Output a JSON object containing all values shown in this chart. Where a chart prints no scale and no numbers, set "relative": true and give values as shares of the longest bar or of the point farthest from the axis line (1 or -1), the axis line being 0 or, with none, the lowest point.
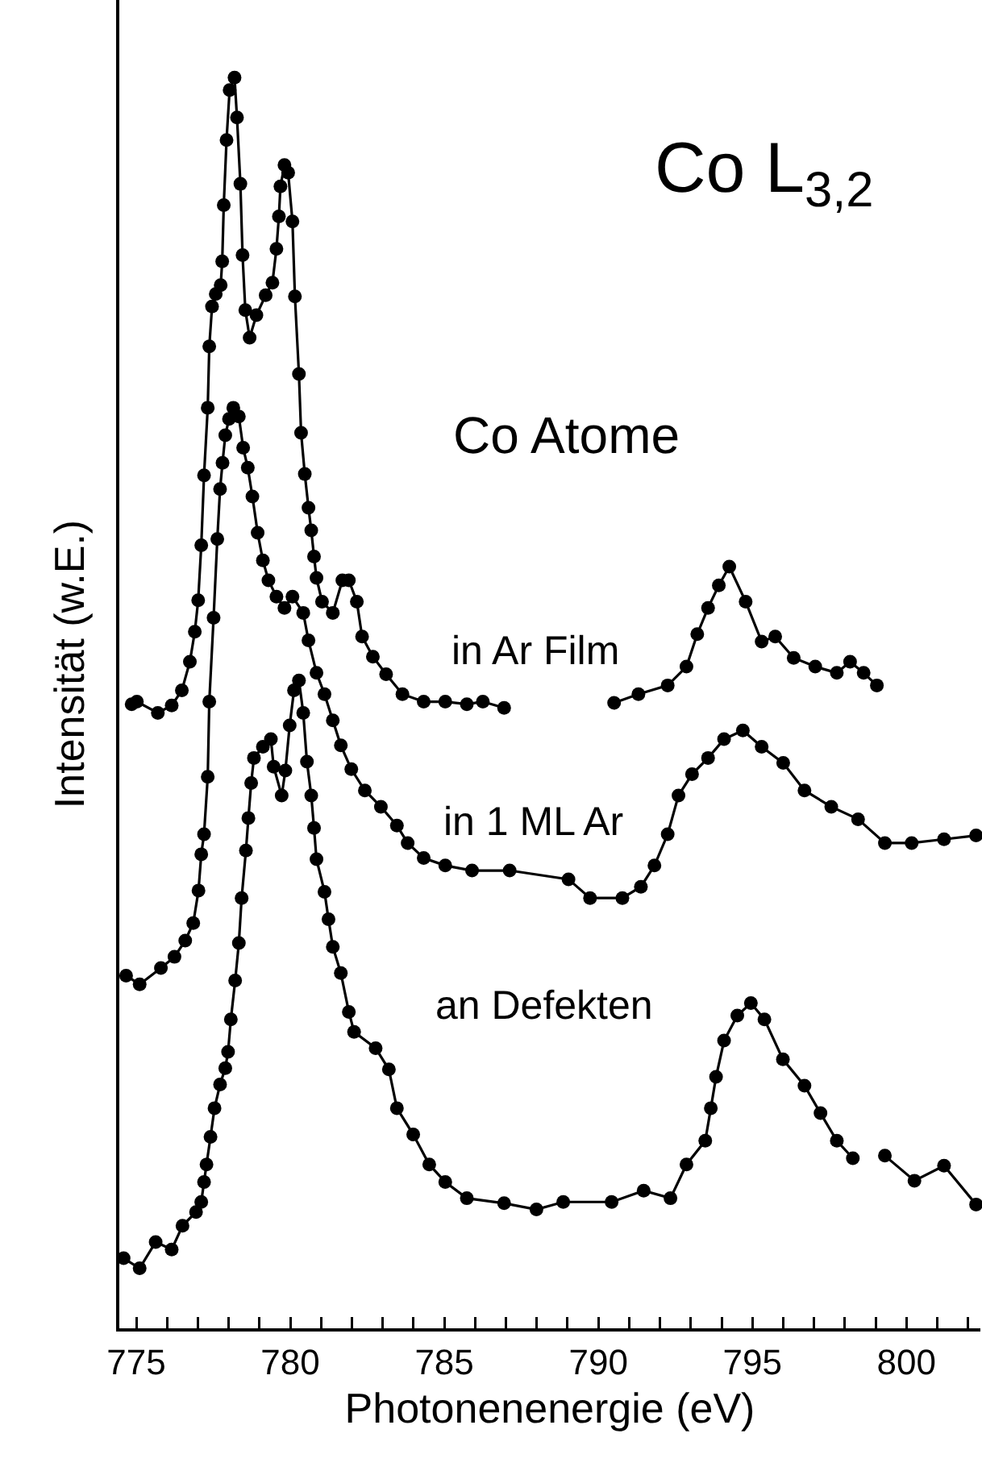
{
  "chart_data": {
    "type": "line",
    "xlabel": "Photonenenergie (eV)",
    "ylabel": "Intensität (w.E.)",
    "relative": true,
    "marker": "circle",
    "line_style": "solid",
    "legend": false,
    "grid": false,
    "tick_labels": "x",
    "annotations": [
      "Co L$_{3,2}$",
      "Co Atome"
    ],
    "xlim": [
      774.45,
      802.4
    ],
    "xticks": [
      775,
      {
        "value": 776,
        "label": null
      },
      {
        "value": 777,
        "label": null
      },
      {
        "value": 778,
        "label": null
      },
      {
        "value": 779,
        "label": null
      },
      780,
      {
        "value": 781,
        "label": null
      },
      {
        "value": 782,
        "label": null
      },
      {
        "value": 783,
        "label": null
      },
      {
        "value": 784,
        "label": null
      },
      785,
      {
        "value": 786,
        "label": null
      },
      {
        "value": 787,
        "label": null
      },
      {
        "value": 788,
        "label": null
      },
      {
        "value": 789,
        "label": null
      },
      790,
      {
        "value": 791,
        "label": null
      },
      {
        "value": 792,
        "label": null
      },
      {
        "value": 793,
        "label": null
      },
      {
        "value": 794,
        "label": null
      },
      795,
      {
        "value": 796,
        "label": null
      },
      {
        "value": 797,
        "label": null
      },
      {
        "value": 798,
        "label": null
      },
      {
        "value": 799,
        "label": null
      },
      800,
      {
        "value": 801,
        "label": null
      },
      {
        "value": 802,
        "label": null
      }
    ],
    "series": [
      {
        "name": "in Ar Film",
        "color": "#000000",
        "x": [
          774.85,
          775.02,
          775.7,
          776.15,
          776.48,
          776.74,
          776.9,
          777.01,
          777.11,
          777.2,
          777.32,
          777.37,
          777.46,
          777.58,
          777.74,
          777.79,
          777.84,
          777.93,
          778.03,
          778.19,
          778.27,
          778.38,
          778.45,
          778.54,
          778.68,
          778.9,
          779.2,
          779.42,
          779.55,
          779.63,
          779.68,
          779.81,
          779.93,
          780.07,
          780.15,
          780.28,
          780.35,
          780.47,
          780.59,
          780.68,
          780.77,
          780.85,
          781.03,
          781.38,
          781.69,
          781.9,
          782.16,
          782.33,
          782.68,
          783.11,
          783.64,
          784.33,
          785.03,
          785.73,
          786.25,
          786.94,
          788.7,
          790.51,
          791.3,
          792.25,
          792.86,
          793.21,
          793.56,
          793.91,
          794.25,
          794.78,
          795.3,
          795.74,
          796.34,
          797.04,
          797.74,
          798.17,
          798.61,
          799.04
        ],
        "values": [
          0.499,
          0.501,
          0.492,
          0.498,
          0.51,
          0.533,
          0.557,
          0.582,
          0.626,
          0.682,
          0.736,
          0.785,
          0.817,
          0.827,
          0.834,
          0.853,
          0.898,
          0.95,
          0.99,
          1,
          0.968,
          0.915,
          0.858,
          0.814,
          0.792,
          0.81,
          0.826,
          0.836,
          0.863,
          0.889,
          0.913,
          0.93,
          0.924,
          0.885,
          0.825,
          0.763,
          0.716,
          0.683,
          0.656,
          0.638,
          0.617,
          0.6,
          0.581,
          0.572,
          0.598,
          0.598,
          0.581,
          0.553,
          0.537,
          0.523,
          0.507,
          0.501,
          0.501,
          0.499,
          0.501,
          0.496,
          null,
          0.5,
          0.507,
          0.514,
          0.529,
          0.555,
          0.576,
          0.594,
          0.609,
          0.581,
          0.549,
          0.553,
          0.536,
          0.529,
          0.524,
          0.533,
          0.524,
          0.514
        ]
      },
      {
        "name": "in 1 ML Ar",
        "color": "#000000",
        "x": [
          774.67,
          775.11,
          775.8,
          776.24,
          776.59,
          776.85,
          777.02,
          777.11,
          777.2,
          777.32,
          777.37,
          777.51,
          777.63,
          777.72,
          777.8,
          777.89,
          778.01,
          778.15,
          778.33,
          778.47,
          778.62,
          778.77,
          778.94,
          779.11,
          779.29,
          779.55,
          779.81,
          780.07,
          780.42,
          780.59,
          780.85,
          781.11,
          781.38,
          781.64,
          781.98,
          782.42,
          782.94,
          783.46,
          783.81,
          784.33,
          785.03,
          785.9,
          787.12,
          789.03,
          789.73,
          790.78,
          791.38,
          791.82,
          792.25,
          792.6,
          793.04,
          793.56,
          794.08,
          794.69,
          795.3,
          796.0,
          796.69,
          797.56,
          798.43,
          799.3,
          800.17,
          801.22,
          802.26
        ],
        "values": [
          0.282,
          0.275,
          0.288,
          0.297,
          0.31,
          0.324,
          0.35,
          0.379,
          0.395,
          0.441,
          0.501,
          0.568,
          0.631,
          0.671,
          0.692,
          0.714,
          0.727,
          0.736,
          0.729,
          0.704,
          0.688,
          0.665,
          0.636,
          0.614,
          0.598,
          0.585,
          0.576,
          0.585,
          0.572,
          0.55,
          0.524,
          0.507,
          0.486,
          0.466,
          0.447,
          0.43,
          0.417,
          0.402,
          0.388,
          0.376,
          0.37,
          0.366,
          0.366,
          0.359,
          0.344,
          0.344,
          0.353,
          0.37,
          0.395,
          0.426,
          0.443,
          0.456,
          0.471,
          0.478,
          0.465,
          0.452,
          0.43,
          0.417,
          0.407,
          0.388,
          0.388,
          0.391,
          0.394
        ]
      },
      {
        "name": "an Defekten",
        "color": "#000000",
        "x": [
          774.59,
          775.11,
          775.63,
          776.15,
          776.5,
          776.94,
          777.11,
          777.2,
          777.28,
          777.41,
          777.54,
          777.72,
          777.89,
          777.98,
          778.07,
          778.21,
          778.33,
          778.42,
          778.56,
          778.64,
          778.73,
          778.82,
          779.11,
          779.37,
          779.46,
          779.72,
          779.84,
          779.98,
          780.12,
          780.28,
          780.42,
          780.54,
          780.68,
          780.77,
          780.85,
          781.11,
          781.24,
          781.38,
          781.64,
          781.9,
          782.07,
          782.77,
          783.2,
          783.46,
          783.99,
          784.51,
          785.03,
          785.73,
          786.94,
          787.99,
          788.86,
          790.43,
          791.47,
          792.34,
          792.86,
          793.47,
          793.65,
          793.82,
          794.08,
          794.51,
          794.95,
          795.39,
          795.99,
          796.69,
          797.21,
          797.74,
          798.26,
          798.8,
          799.3,
          800.26,
          801.22,
          802.26
        ],
        "values": [
          0.056,
          0.048,
          0.069,
          0.063,
          0.082,
          0.093,
          0.101,
          0.117,
          0.131,
          0.153,
          0.176,
          0.195,
          0.208,
          0.221,
          0.247,
          0.278,
          0.308,
          0.344,
          0.382,
          0.408,
          0.436,
          0.456,
          0.465,
          0.471,
          0.449,
          0.426,
          0.446,
          0.482,
          0.51,
          0.518,
          0.492,
          0.453,
          0.426,
          0.4,
          0.375,
          0.349,
          0.327,
          0.305,
          0.284,
          0.253,
          0.237,
          0.224,
          0.207,
          0.176,
          0.155,
          0.131,
          0.117,
          0.104,
          0.1,
          0.095,
          0.101,
          0.101,
          0.11,
          0.104,
          0.131,
          0.15,
          0.176,
          0.201,
          0.23,
          0.25,
          0.26,
          0.247,
          0.215,
          0.194,
          0.172,
          0.15,
          0.136,
          null,
          0.138,
          0.118,
          0.13,
          0.099
        ]
      }
    ]
  }
}
